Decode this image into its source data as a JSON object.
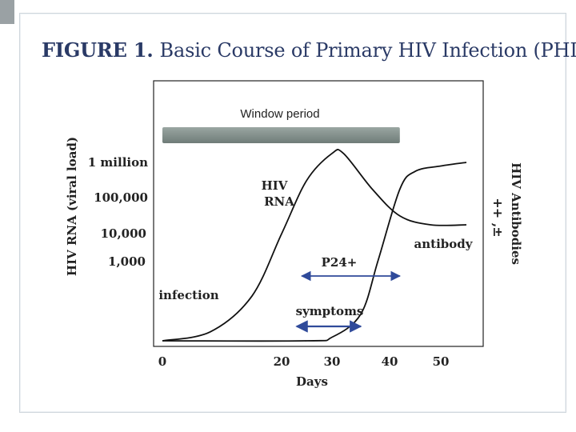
{
  "figure": {
    "label": "FIGURE 1.",
    "title": "Basic Course of Primary HIV Infection (PHI)"
  },
  "chart_data": {
    "type": "line",
    "xlabel": "Days",
    "ylabel": "HIV RNA (viral load)",
    "y2label": "HIV Antibodies",
    "x_ticks": [
      0,
      20,
      30,
      40,
      50
    ],
    "xlim": [
      0,
      55
    ],
    "y_tick_labels": [
      "1 million",
      "100,000",
      "10,000",
      "1,000"
    ],
    "y2_tick_labels": [
      "+",
      "+ ,",
      "±"
    ],
    "series": [
      {
        "name": "HIV RNA",
        "x": [
          0,
          8,
          15,
          20,
          25,
          30,
          32,
          37,
          42,
          48,
          55
        ],
        "y": [
          0.0,
          0.05,
          0.25,
          0.6,
          0.9,
          1.05,
          1.05,
          0.85,
          0.7,
          0.65,
          0.65
        ]
      },
      {
        "name": "antibody",
        "x": [
          0,
          25,
          30,
          35,
          38,
          42,
          45,
          50,
          55
        ],
        "y": [
          0.0,
          0.0,
          0.02,
          0.15,
          0.45,
          0.85,
          0.95,
          0.98,
          1.0
        ]
      }
    ],
    "annotations": {
      "window_period": "Window period",
      "hiv_rna": [
        "HIV",
        "RNA"
      ],
      "antibody": "antibody",
      "p24": "P24+",
      "symptoms": "symptoms",
      "infection": "infection"
    },
    "window_bar": {
      "x_start": 0,
      "x_end": 42
    },
    "p24_range": [
      24,
      42
    ],
    "symptoms_range": [
      23,
      35
    ]
  },
  "colors": {
    "title": "#2a3a66",
    "text": "#222222",
    "line": "#111111",
    "arrow": "#2f4a9a",
    "window_bar": "#7d8a86"
  }
}
